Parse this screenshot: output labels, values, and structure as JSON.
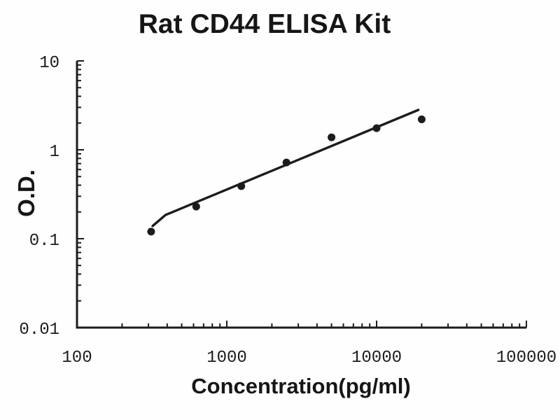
{
  "figure": {
    "background": "#fefefe",
    "ink_color": "#1c1c1c"
  },
  "chart_data": {
    "type": "scatter",
    "title": "Rat CD44 ELISA Kit",
    "xlabel": "Concentration(pg/ml)",
    "ylabel": "O.D.",
    "x_scale": "log",
    "y_scale": "log",
    "xlim": [
      100,
      100000
    ],
    "ylim": [
      0.01,
      10
    ],
    "x_major_ticks": [
      100,
      1000,
      10000,
      100000
    ],
    "x_tick_labels": [
      "100",
      "1000",
      "10000",
      "100000"
    ],
    "y_major_ticks": [
      10,
      1,
      0.1,
      0.01
    ],
    "y_tick_labels": [
      "10",
      "1",
      "0.1",
      "0.01"
    ],
    "grid": false,
    "legend": null,
    "series": [
      {
        "name": "standard-points",
        "kind": "scatter",
        "marker": "circle",
        "color": "#1c1c1c",
        "x": [
          312.5,
          625,
          1250,
          2500,
          5000,
          10000,
          20000
        ],
        "y": [
          0.12,
          0.23,
          0.39,
          0.72,
          1.38,
          1.75,
          2.2
        ]
      },
      {
        "name": "fit-line",
        "kind": "line",
        "color": "#1c1c1c",
        "x": [
          320,
          390,
          19000
        ],
        "y": [
          0.139,
          0.185,
          2.81
        ]
      }
    ]
  }
}
